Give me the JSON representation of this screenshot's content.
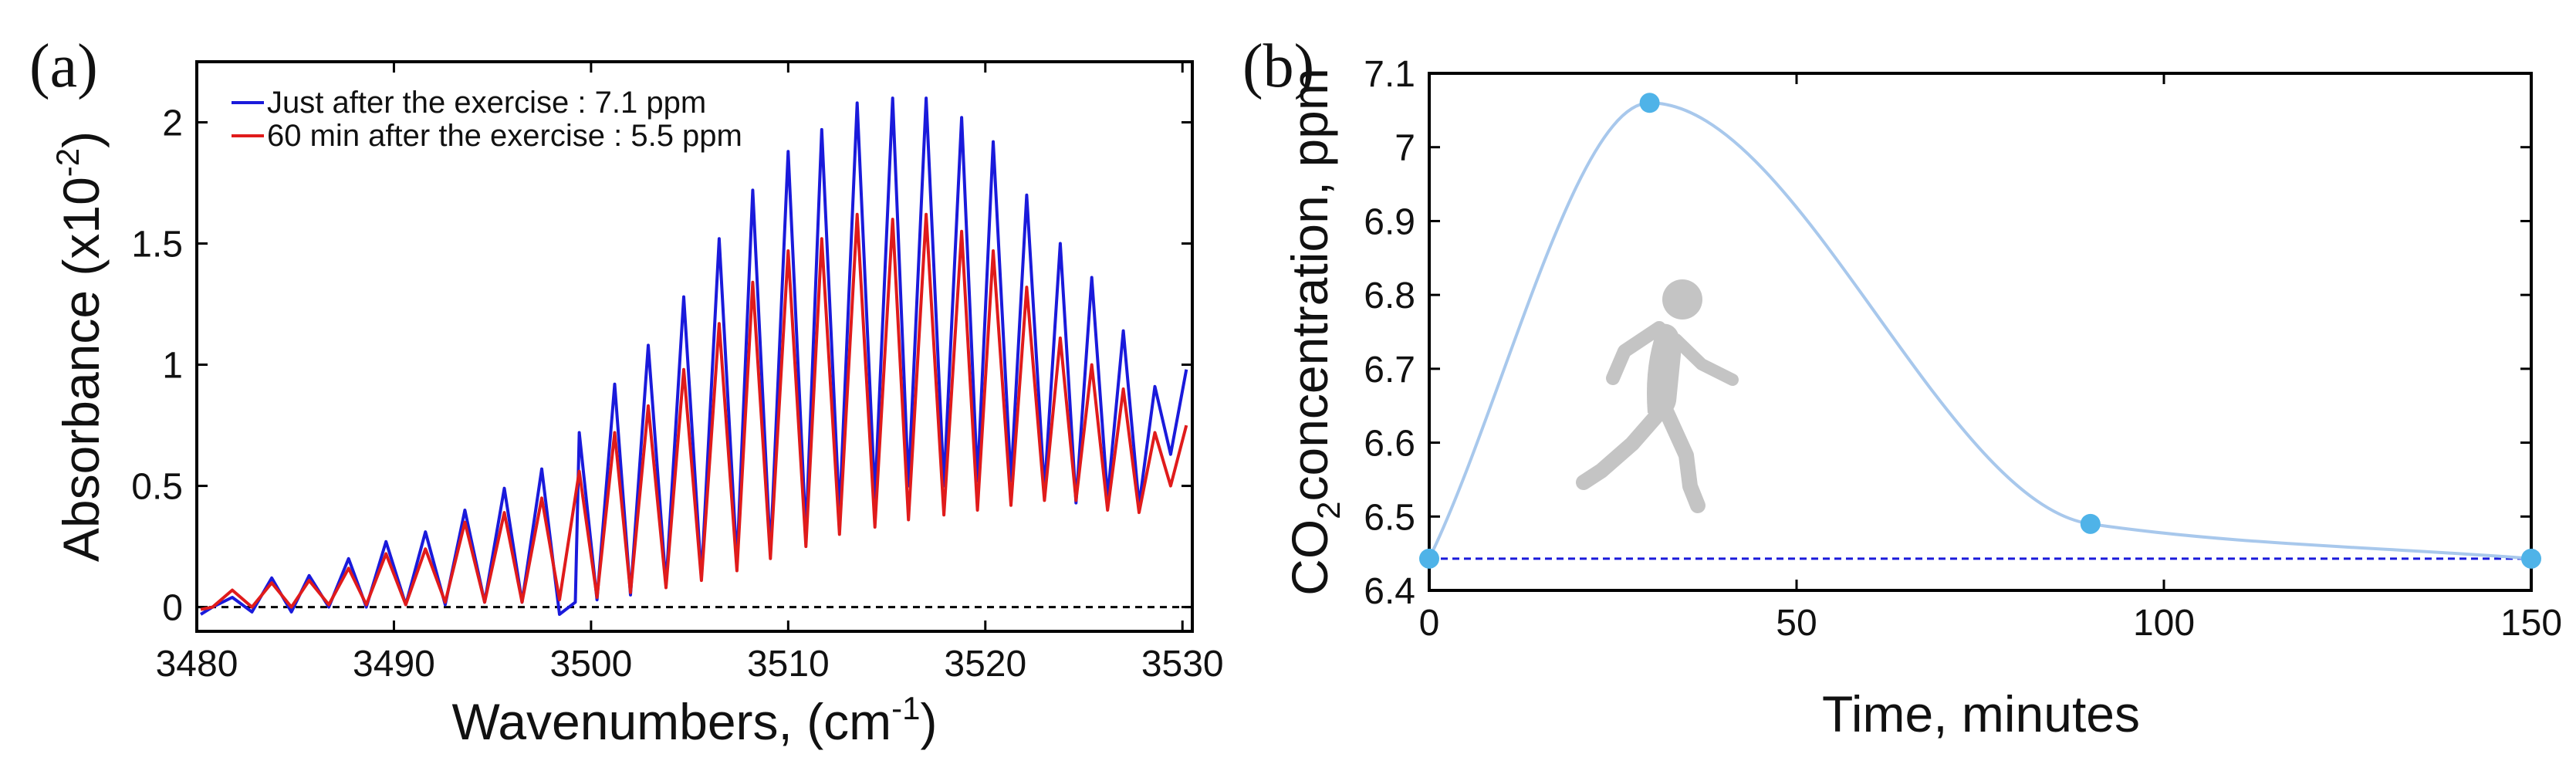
{
  "chart_data": [
    {
      "type": "line",
      "panel_label": "(a)",
      "xlabel": "Wavenumbers, (cm",
      "xlabel_sup": "-1",
      "xlabel_close": ")",
      "ylabel": "Absorbance (x10",
      "ylabel_sup": "-2",
      "ylabel_close": ")",
      "xlim": [
        3480,
        3530.5
      ],
      "ylim": [
        -0.1,
        2.25
      ],
      "xticks": [
        3480,
        3490,
        3500,
        3510,
        3520,
        3530
      ],
      "xtick_labels": [
        "3480",
        "3490",
        "3500",
        "3510",
        "3520",
        "3530"
      ],
      "yticks": [
        0,
        0.5,
        1,
        1.5,
        2
      ],
      "ytick_labels": [
        "0",
        "0.5",
        "1",
        "1.5",
        "2"
      ],
      "legend_position": "top-left",
      "baseline": 0,
      "series": [
        {
          "name": "Just after the exercise : 7.1 ppm",
          "color": "#1a1adb",
          "peaks": [
            {
              "x": 3480.2,
              "y": -0.03
            },
            {
              "x": 3481.8,
              "y": 0.04
            },
            {
              "x": 3483.8,
              "y": 0.12
            },
            {
              "x": 3485.7,
              "y": 0.13
            },
            {
              "x": 3487.7,
              "y": 0.2
            },
            {
              "x": 3489.6,
              "y": 0.27
            },
            {
              "x": 3491.6,
              "y": 0.31
            },
            {
              "x": 3493.6,
              "y": 0.4
            },
            {
              "x": 3495.6,
              "y": 0.49
            },
            {
              "x": 3497.5,
              "y": 0.57
            },
            {
              "x": 3499.2,
              "y": 0.02
            },
            {
              "x": 3499.4,
              "y": 0.72
            },
            {
              "x": 3501.2,
              "y": 0.92
            },
            {
              "x": 3502.9,
              "y": 1.08
            },
            {
              "x": 3504.7,
              "y": 1.28
            },
            {
              "x": 3506.5,
              "y": 1.52
            },
            {
              "x": 3508.2,
              "y": 1.72
            },
            {
              "x": 3510.0,
              "y": 1.88
            },
            {
              "x": 3511.7,
              "y": 1.97
            },
            {
              "x": 3513.5,
              "y": 2.08
            },
            {
              "x": 3515.3,
              "y": 2.1
            },
            {
              "x": 3517.0,
              "y": 2.1
            },
            {
              "x": 3518.8,
              "y": 2.02
            },
            {
              "x": 3520.4,
              "y": 1.92
            },
            {
              "x": 3522.1,
              "y": 1.7
            },
            {
              "x": 3523.8,
              "y": 1.5
            },
            {
              "x": 3525.4,
              "y": 1.36
            },
            {
              "x": 3527.0,
              "y": 1.14
            },
            {
              "x": 3528.6,
              "y": 0.91
            },
            {
              "x": 3530.2,
              "y": 0.98
            }
          ],
          "valleys": [
            {
              "x": 3480.8,
              "y": 0.0
            },
            {
              "x": 3482.8,
              "y": -0.02
            },
            {
              "x": 3484.8,
              "y": -0.02
            },
            {
              "x": 3486.7,
              "y": 0.0
            },
            {
              "x": 3488.6,
              "y": 0.0
            },
            {
              "x": 3490.6,
              "y": 0.01
            },
            {
              "x": 3492.6,
              "y": 0.01
            },
            {
              "x": 3494.6,
              "y": 0.02
            },
            {
              "x": 3496.5,
              "y": 0.02
            },
            {
              "x": 3498.4,
              "y": -0.03
            },
            {
              "x": 3500.3,
              "y": 0.03
            },
            {
              "x": 3502.0,
              "y": 0.05
            },
            {
              "x": 3503.8,
              "y": 0.09
            },
            {
              "x": 3505.6,
              "y": 0.12
            },
            {
              "x": 3507.4,
              "y": 0.18
            },
            {
              "x": 3509.1,
              "y": 0.22
            },
            {
              "x": 3510.9,
              "y": 0.3
            },
            {
              "x": 3512.6,
              "y": 0.38
            },
            {
              "x": 3514.4,
              "y": 0.45
            },
            {
              "x": 3516.1,
              "y": 0.5
            },
            {
              "x": 3517.9,
              "y": 0.5
            },
            {
              "x": 3519.6,
              "y": 0.52
            },
            {
              "x": 3521.3,
              "y": 0.52
            },
            {
              "x": 3523.0,
              "y": 0.48
            },
            {
              "x": 3524.6,
              "y": 0.43
            },
            {
              "x": 3526.2,
              "y": 0.45
            },
            {
              "x": 3527.8,
              "y": 0.42
            },
            {
              "x": 3529.4,
              "y": 0.63
            }
          ]
        },
        {
          "name": "60 min after the exercise : 5.5 ppm",
          "color": "#e01b1b",
          "peaks": [
            {
              "x": 3480.2,
              "y": -0.01
            },
            {
              "x": 3481.8,
              "y": 0.07
            },
            {
              "x": 3483.8,
              "y": 0.1
            },
            {
              "x": 3485.7,
              "y": 0.11
            },
            {
              "x": 3487.7,
              "y": 0.16
            },
            {
              "x": 3489.6,
              "y": 0.22
            },
            {
              "x": 3491.6,
              "y": 0.24
            },
            {
              "x": 3493.6,
              "y": 0.35
            },
            {
              "x": 3495.6,
              "y": 0.39
            },
            {
              "x": 3497.5,
              "y": 0.45
            },
            {
              "x": 3499.4,
              "y": 0.56
            },
            {
              "x": 3501.2,
              "y": 0.72
            },
            {
              "x": 3502.9,
              "y": 0.83
            },
            {
              "x": 3504.7,
              "y": 0.98
            },
            {
              "x": 3506.5,
              "y": 1.17
            },
            {
              "x": 3508.2,
              "y": 1.34
            },
            {
              "x": 3510.0,
              "y": 1.47
            },
            {
              "x": 3511.7,
              "y": 1.52
            },
            {
              "x": 3513.5,
              "y": 1.62
            },
            {
              "x": 3515.3,
              "y": 1.6
            },
            {
              "x": 3517.0,
              "y": 1.62
            },
            {
              "x": 3518.8,
              "y": 1.55
            },
            {
              "x": 3520.4,
              "y": 1.47
            },
            {
              "x": 3522.1,
              "y": 1.32
            },
            {
              "x": 3523.8,
              "y": 1.11
            },
            {
              "x": 3525.4,
              "y": 1.0
            },
            {
              "x": 3527.0,
              "y": 0.9
            },
            {
              "x": 3528.6,
              "y": 0.72
            },
            {
              "x": 3530.2,
              "y": 0.75
            }
          ],
          "valleys": [
            {
              "x": 3480.8,
              "y": 0.0
            },
            {
              "x": 3482.8,
              "y": 0.0
            },
            {
              "x": 3484.8,
              "y": 0.0
            },
            {
              "x": 3486.7,
              "y": 0.01
            },
            {
              "x": 3488.6,
              "y": 0.01
            },
            {
              "x": 3490.6,
              "y": 0.01
            },
            {
              "x": 3492.6,
              "y": 0.02
            },
            {
              "x": 3494.6,
              "y": 0.02
            },
            {
              "x": 3496.5,
              "y": 0.02
            },
            {
              "x": 3498.4,
              "y": 0.03
            },
            {
              "x": 3500.3,
              "y": 0.04
            },
            {
              "x": 3502.0,
              "y": 0.06
            },
            {
              "x": 3503.8,
              "y": 0.08
            },
            {
              "x": 3505.6,
              "y": 0.11
            },
            {
              "x": 3507.4,
              "y": 0.15
            },
            {
              "x": 3509.1,
              "y": 0.2
            },
            {
              "x": 3510.9,
              "y": 0.25
            },
            {
              "x": 3512.6,
              "y": 0.3
            },
            {
              "x": 3514.4,
              "y": 0.33
            },
            {
              "x": 3516.1,
              "y": 0.36
            },
            {
              "x": 3517.9,
              "y": 0.38
            },
            {
              "x": 3519.6,
              "y": 0.4
            },
            {
              "x": 3521.3,
              "y": 0.42
            },
            {
              "x": 3523.0,
              "y": 0.44
            },
            {
              "x": 3524.6,
              "y": 0.44
            },
            {
              "x": 3526.2,
              "y": 0.4
            },
            {
              "x": 3527.8,
              "y": 0.39
            },
            {
              "x": 3529.4,
              "y": 0.5
            }
          ]
        }
      ]
    },
    {
      "type": "line",
      "panel_label": "(b)",
      "xlabel": "Time, minutes",
      "ylabel_prefix": "CO",
      "ylabel_sub": "2",
      "ylabel_suffix": "concentration, ppm",
      "xlim": [
        0,
        150
      ],
      "ylim": [
        6.4,
        7.1
      ],
      "xticks": [
        0,
        50,
        100,
        150
      ],
      "xtick_labels": [
        "0",
        "50",
        "100",
        "150"
      ],
      "yticks": [
        6.4,
        6.5,
        6.6,
        6.7,
        6.8,
        6.9,
        7.0,
        7.1
      ],
      "ytick_labels": [
        "6.4",
        "6.5",
        "6.6",
        "6.7",
        "6.8",
        "6.9",
        "7",
        "7.1"
      ],
      "baseline": 6.443,
      "series": [
        {
          "name": "CO2 concentration",
          "color": "#a8c8ec",
          "marker_color": "#4fb3e8",
          "x": [
            0,
            30,
            90,
            150
          ],
          "y": [
            6.443,
            7.06,
            6.49,
            6.443
          ]
        }
      ],
      "annotation_icon": "running-person-icon"
    }
  ]
}
